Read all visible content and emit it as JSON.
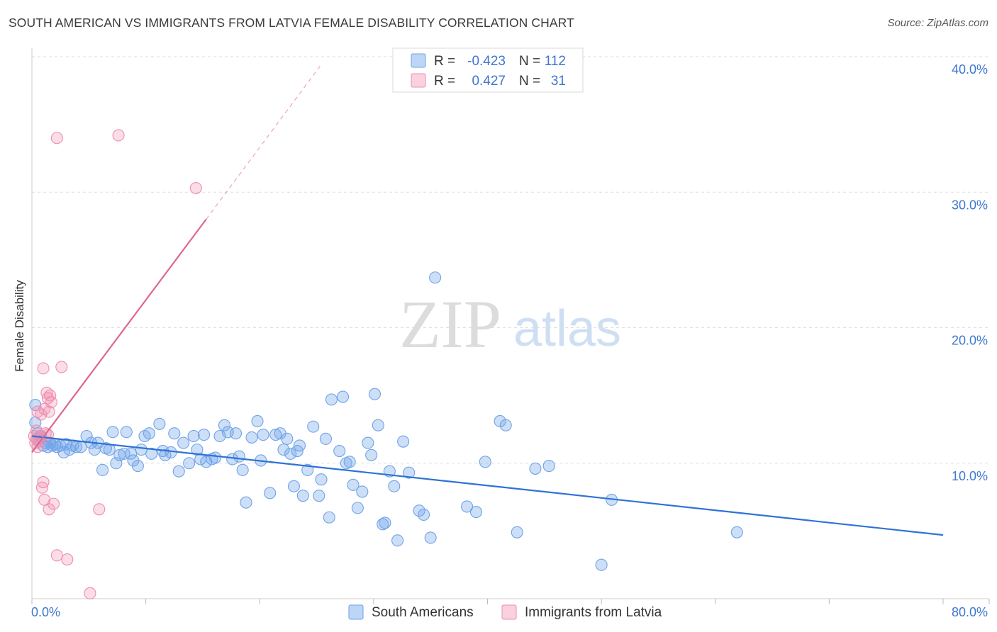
{
  "title": "SOUTH AMERICAN VS IMMIGRANTS FROM LATVIA FEMALE DISABILITY CORRELATION CHART",
  "source": "Source: ZipAtlas.com",
  "watermark": {
    "zip": "ZIP",
    "atlas": "atlas"
  },
  "colors": {
    "blue": "#6fa3e8",
    "blue_line": "#2f72d6",
    "pink": "#f08db0",
    "pink_line": "#e0668e",
    "axis_text": "#3f76cf",
    "grid": "#dddddd"
  },
  "legend": {
    "rows": [
      {
        "r_label": "R =",
        "r_value": "-0.423",
        "n_label": "N =",
        "n_value": "112"
      },
      {
        "r_label": "R =",
        "r_value": "0.427",
        "n_label": "N =",
        "n_value": "31"
      }
    ]
  },
  "chart_data": {
    "type": "scatter",
    "title": "SOUTH AMERICAN VS IMMIGRANTS FROM LATVIA FEMALE DISABILITY CORRELATION CHART",
    "ylabel": "Female Disability",
    "xlabel": "",
    "xlim": [
      0,
      80
    ],
    "ylim": [
      0,
      40
    ],
    "x_tick_labels": [
      "0.0%",
      "80.0%"
    ],
    "y_ticks": [
      10,
      20,
      30,
      40
    ],
    "y_tick_labels": [
      "10.0%",
      "20.0%",
      "30.0%",
      "40.0%"
    ],
    "grid": true,
    "legend_position": "top-center",
    "series": [
      {
        "name": "South Americans",
        "r": -0.423,
        "n": 112,
        "trend": {
          "x": [
            0,
            80
          ],
          "y": [
            12.0,
            4.7
          ]
        },
        "points": [
          [
            0.3,
            14.3
          ],
          [
            0.3,
            13.0
          ],
          [
            0.5,
            12.2
          ],
          [
            0.6,
            11.8
          ],
          [
            0.8,
            12.0
          ],
          [
            1.0,
            11.3
          ],
          [
            1.2,
            11.5
          ],
          [
            1.4,
            11.2
          ],
          [
            1.6,
            11.5
          ],
          [
            1.8,
            11.3
          ],
          [
            2.0,
            11.4
          ],
          [
            2.2,
            11.2
          ],
          [
            2.5,
            11.3
          ],
          [
            2.8,
            10.8
          ],
          [
            3.0,
            11.4
          ],
          [
            3.3,
            11.0
          ],
          [
            3.6,
            11.3
          ],
          [
            3.9,
            11.2
          ],
          [
            4.3,
            11.2
          ],
          [
            4.8,
            12.0
          ],
          [
            5.2,
            11.5
          ],
          [
            5.5,
            11.0
          ],
          [
            5.8,
            11.5
          ],
          [
            6.2,
            9.5
          ],
          [
            6.5,
            11.1
          ],
          [
            6.8,
            11.0
          ],
          [
            7.1,
            12.3
          ],
          [
            7.4,
            10.0
          ],
          [
            7.7,
            10.6
          ],
          [
            8.1,
            10.7
          ],
          [
            8.3,
            12.3
          ],
          [
            8.7,
            10.7
          ],
          [
            8.9,
            10.2
          ],
          [
            9.3,
            9.8
          ],
          [
            9.6,
            11.0
          ],
          [
            9.9,
            12.0
          ],
          [
            10.3,
            12.2
          ],
          [
            10.5,
            10.7
          ],
          [
            11.2,
            12.9
          ],
          [
            11.5,
            10.9
          ],
          [
            11.7,
            10.6
          ],
          [
            12.2,
            10.8
          ],
          [
            12.5,
            12.2
          ],
          [
            12.9,
            9.4
          ],
          [
            13.3,
            11.5
          ],
          [
            13.8,
            10.0
          ],
          [
            14.2,
            12.0
          ],
          [
            14.5,
            11.0
          ],
          [
            14.8,
            10.3
          ],
          [
            15.1,
            12.1
          ],
          [
            15.3,
            10.1
          ],
          [
            15.8,
            10.3
          ],
          [
            16.1,
            10.4
          ],
          [
            16.5,
            12.0
          ],
          [
            16.9,
            12.8
          ],
          [
            17.2,
            12.3
          ],
          [
            17.6,
            10.3
          ],
          [
            17.9,
            12.2
          ],
          [
            18.2,
            10.5
          ],
          [
            18.5,
            9.5
          ],
          [
            18.8,
            7.1
          ],
          [
            19.3,
            11.9
          ],
          [
            19.8,
            13.1
          ],
          [
            20.1,
            10.2
          ],
          [
            20.3,
            12.1
          ],
          [
            20.9,
            7.8
          ],
          [
            21.4,
            12.1
          ],
          [
            21.8,
            12.2
          ],
          [
            22.1,
            11.0
          ],
          [
            22.4,
            11.8
          ],
          [
            22.7,
            10.7
          ],
          [
            23.0,
            8.3
          ],
          [
            23.3,
            10.9
          ],
          [
            23.5,
            11.3
          ],
          [
            23.8,
            7.6
          ],
          [
            24.2,
            9.5
          ],
          [
            24.7,
            12.7
          ],
          [
            25.2,
            7.6
          ],
          [
            25.4,
            8.8
          ],
          [
            25.8,
            11.8
          ],
          [
            26.1,
            6.0
          ],
          [
            26.3,
            14.7
          ],
          [
            27.0,
            10.9
          ],
          [
            27.3,
            14.9
          ],
          [
            27.6,
            10.0
          ],
          [
            27.9,
            10.1
          ],
          [
            28.2,
            8.4
          ],
          [
            28.6,
            6.7
          ],
          [
            29.0,
            7.9
          ],
          [
            29.5,
            11.5
          ],
          [
            29.8,
            10.6
          ],
          [
            30.1,
            15.1
          ],
          [
            30.4,
            12.8
          ],
          [
            30.8,
            5.5
          ],
          [
            31.0,
            5.6
          ],
          [
            31.4,
            9.4
          ],
          [
            31.8,
            8.3
          ],
          [
            32.1,
            4.3
          ],
          [
            32.6,
            11.6
          ],
          [
            33.1,
            9.3
          ],
          [
            34.0,
            6.5
          ],
          [
            34.4,
            6.2
          ],
          [
            35.0,
            4.5
          ],
          [
            35.4,
            23.7
          ],
          [
            38.2,
            6.8
          ],
          [
            39.0,
            6.4
          ],
          [
            39.8,
            10.1
          ],
          [
            41.1,
            13.1
          ],
          [
            41.6,
            12.8
          ],
          [
            42.6,
            4.9
          ],
          [
            44.2,
            9.6
          ],
          [
            45.4,
            9.8
          ],
          [
            50.0,
            2.5
          ],
          [
            50.9,
            7.3
          ],
          [
            61.9,
            4.9
          ]
        ]
      },
      {
        "name": "Immigrants from Latvia",
        "r": 0.427,
        "n": 31,
        "trend": {
          "x": [
            0,
            15.3
          ],
          "y": [
            10.8,
            28.0
          ]
        },
        "trend_dashed": {
          "x": [
            15.3,
            25.3
          ],
          "y": [
            28.0,
            39.3
          ]
        },
        "points": [
          [
            0.2,
            12.0
          ],
          [
            0.3,
            11.5
          ],
          [
            0.4,
            11.8
          ],
          [
            0.4,
            12.4
          ],
          [
            0.5,
            11.2
          ],
          [
            0.5,
            13.8
          ],
          [
            0.6,
            11.6
          ],
          [
            0.7,
            12.0
          ],
          [
            0.8,
            13.6
          ],
          [
            0.9,
            8.2
          ],
          [
            1.0,
            8.6
          ],
          [
            1.0,
            17.0
          ],
          [
            1.1,
            14.0
          ],
          [
            1.1,
            7.3
          ],
          [
            1.2,
            12.2
          ],
          [
            1.3,
            15.2
          ],
          [
            1.4,
            14.8
          ],
          [
            1.4,
            12.1
          ],
          [
            1.5,
            6.6
          ],
          [
            1.5,
            13.8
          ],
          [
            1.6,
            15.0
          ],
          [
            1.7,
            14.5
          ],
          [
            1.9,
            7.0
          ],
          [
            2.2,
            3.2
          ],
          [
            2.2,
            34.0
          ],
          [
            2.6,
            17.1
          ],
          [
            3.1,
            2.9
          ],
          [
            5.1,
            0.4
          ],
          [
            5.9,
            6.6
          ],
          [
            7.6,
            34.2
          ],
          [
            14.4,
            30.3
          ]
        ]
      }
    ]
  },
  "bottom_legend": {
    "items": [
      {
        "label": "South Americans"
      },
      {
        "label": "Immigrants from Latvia"
      }
    ]
  }
}
